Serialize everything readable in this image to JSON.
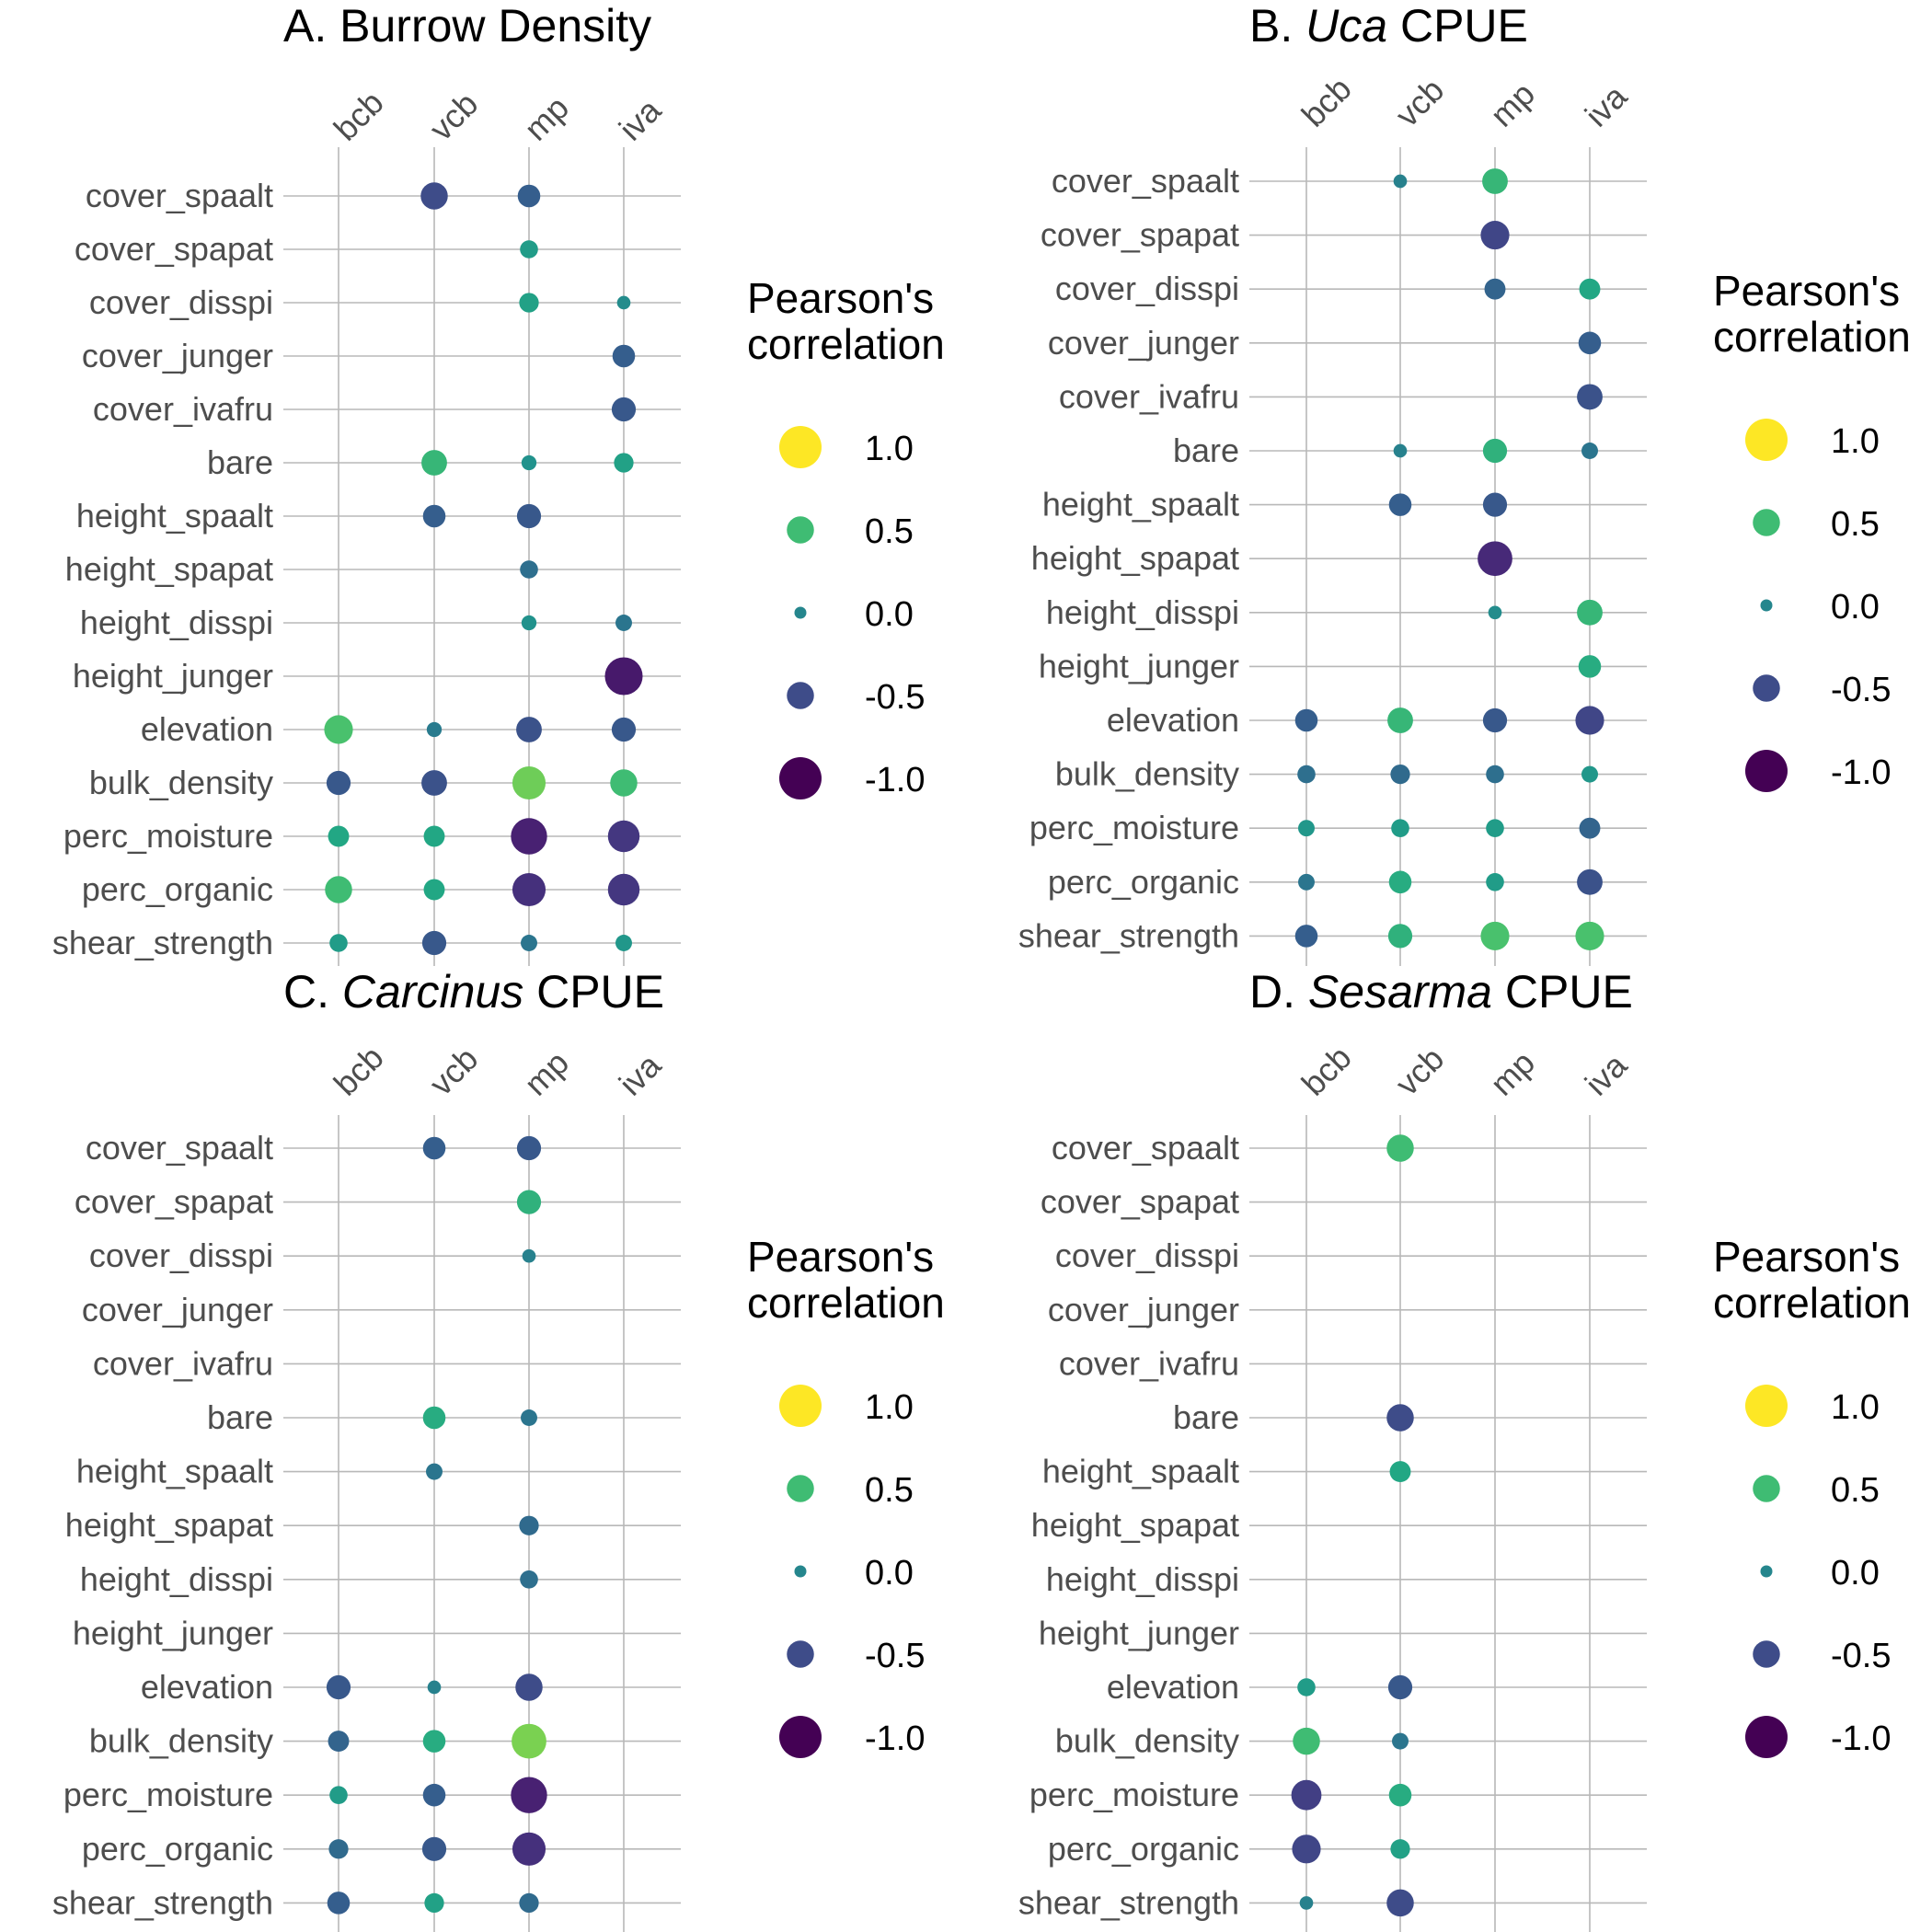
{
  "legend": {
    "title_line1": "Pearson's",
    "title_line2": "correlation",
    "levels": [
      {
        "value": 1.0,
        "label": "1.0"
      },
      {
        "value": 0.5,
        "label": "0.5"
      },
      {
        "value": 0.0,
        "label": "0.0"
      },
      {
        "value": -0.5,
        "label": "-0.5"
      },
      {
        "value": -1.0,
        "label": "-1.0"
      }
    ]
  },
  "chart_data": [
    {
      "type": "scatter",
      "title_prefix": "A. ",
      "title_italic": "",
      "title_suffix": "Burrow Density",
      "columns": [
        "bcb",
        "vcb",
        "mp",
        "iva"
      ],
      "rows": [
        "cover_spaalt",
        "cover_spapat",
        "cover_disspi",
        "cover_junger",
        "cover_ivafru",
        "bare",
        "height_spaalt",
        "height_spapat",
        "height_disspi",
        "height_junger",
        "elevation",
        "bulk_density",
        "perc_moisture",
        "perc_organic",
        "shear_strength"
      ],
      "points": [
        {
          "row": "cover_spaalt",
          "col": "vcb",
          "r": -0.5
        },
        {
          "row": "cover_spaalt",
          "col": "mp",
          "r": -0.35
        },
        {
          "row": "cover_spapat",
          "col": "mp",
          "r": 0.2
        },
        {
          "row": "cover_disspi",
          "col": "mp",
          "r": 0.25
        },
        {
          "row": "cover_disspi",
          "col": "iva",
          "r": 0.05
        },
        {
          "row": "cover_junger",
          "col": "iva",
          "r": -0.35
        },
        {
          "row": "cover_ivafru",
          "col": "iva",
          "r": -0.4
        },
        {
          "row": "bare",
          "col": "vcb",
          "r": 0.45
        },
        {
          "row": "bare",
          "col": "mp",
          "r": 0.1
        },
        {
          "row": "bare",
          "col": "iva",
          "r": 0.25
        },
        {
          "row": "height_spaalt",
          "col": "vcb",
          "r": -0.35
        },
        {
          "row": "height_spaalt",
          "col": "mp",
          "r": -0.4
        },
        {
          "row": "height_spapat",
          "col": "mp",
          "r": -0.2
        },
        {
          "row": "height_disspi",
          "col": "mp",
          "r": 0.1
        },
        {
          "row": "height_disspi",
          "col": "iva",
          "r": -0.15
        },
        {
          "row": "height_junger",
          "col": "iva",
          "r": -0.85
        },
        {
          "row": "elevation",
          "col": "bcb",
          "r": 0.55
        },
        {
          "row": "elevation",
          "col": "vcb",
          "r": -0.1
        },
        {
          "row": "elevation",
          "col": "mp",
          "r": -0.45
        },
        {
          "row": "elevation",
          "col": "iva",
          "r": -0.4
        },
        {
          "row": "bulk_density",
          "col": "bcb",
          "r": -0.4
        },
        {
          "row": "bulk_density",
          "col": "vcb",
          "r": -0.45
        },
        {
          "row": "bulk_density",
          "col": "mp",
          "r": 0.7
        },
        {
          "row": "bulk_density",
          "col": "iva",
          "r": 0.5
        },
        {
          "row": "perc_moisture",
          "col": "bcb",
          "r": 0.3
        },
        {
          "row": "perc_moisture",
          "col": "vcb",
          "r": 0.3
        },
        {
          "row": "perc_moisture",
          "col": "mp",
          "r": -0.8
        },
        {
          "row": "perc_moisture",
          "col": "iva",
          "r": -0.65
        },
        {
          "row": "perc_organic",
          "col": "bcb",
          "r": 0.5
        },
        {
          "row": "perc_organic",
          "col": "vcb",
          "r": 0.3
        },
        {
          "row": "perc_organic",
          "col": "mp",
          "r": -0.7
        },
        {
          "row": "perc_organic",
          "col": "iva",
          "r": -0.65
        },
        {
          "row": "shear_strength",
          "col": "bcb",
          "r": 0.2
        },
        {
          "row": "shear_strength",
          "col": "vcb",
          "r": -0.4
        },
        {
          "row": "shear_strength",
          "col": "mp",
          "r": -0.15
        },
        {
          "row": "shear_strength",
          "col": "iva",
          "r": 0.15
        }
      ]
    },
    {
      "type": "scatter",
      "title_prefix": "B. ",
      "title_italic": "Uca",
      "title_suffix": " CPUE",
      "columns": [
        "bcb",
        "vcb",
        "mp",
        "iva"
      ],
      "rows": [
        "cover_spaalt",
        "cover_spapat",
        "cover_disspi",
        "cover_junger",
        "cover_ivafru",
        "bare",
        "height_spaalt",
        "height_spapat",
        "height_disspi",
        "height_junger",
        "elevation",
        "bulk_density",
        "perc_moisture",
        "perc_organic",
        "shear_strength"
      ],
      "points": [
        {
          "row": "cover_spaalt",
          "col": "vcb",
          "r": -0.05
        },
        {
          "row": "cover_spaalt",
          "col": "mp",
          "r": 0.45
        },
        {
          "row": "cover_spapat",
          "col": "mp",
          "r": -0.55
        },
        {
          "row": "cover_disspi",
          "col": "mp",
          "r": -0.3
        },
        {
          "row": "cover_disspi",
          "col": "iva",
          "r": 0.3
        },
        {
          "row": "cover_junger",
          "col": "iva",
          "r": -0.35
        },
        {
          "row": "cover_ivafru",
          "col": "iva",
          "r": -0.45
        },
        {
          "row": "bare",
          "col": "vcb",
          "r": -0.05
        },
        {
          "row": "bare",
          "col": "mp",
          "r": 0.4
        },
        {
          "row": "bare",
          "col": "iva",
          "r": -0.15
        },
        {
          "row": "height_spaalt",
          "col": "vcb",
          "r": -0.35
        },
        {
          "row": "height_spaalt",
          "col": "mp",
          "r": -0.4
        },
        {
          "row": "height_spapat",
          "col": "mp",
          "r": -0.75
        },
        {
          "row": "height_disspi",
          "col": "mp",
          "r": 0.05
        },
        {
          "row": "height_disspi",
          "col": "iva",
          "r": 0.45
        },
        {
          "row": "height_junger",
          "col": "iva",
          "r": 0.35
        },
        {
          "row": "elevation",
          "col": "bcb",
          "r": -0.35
        },
        {
          "row": "elevation",
          "col": "vcb",
          "r": 0.45
        },
        {
          "row": "elevation",
          "col": "mp",
          "r": -0.4
        },
        {
          "row": "elevation",
          "col": "iva",
          "r": -0.55
        },
        {
          "row": "bulk_density",
          "col": "bcb",
          "r": -0.2
        },
        {
          "row": "bulk_density",
          "col": "vcb",
          "r": -0.25
        },
        {
          "row": "bulk_density",
          "col": "mp",
          "r": -0.2
        },
        {
          "row": "bulk_density",
          "col": "iva",
          "r": 0.15
        },
        {
          "row": "perc_moisture",
          "col": "bcb",
          "r": 0.15
        },
        {
          "row": "perc_moisture",
          "col": "vcb",
          "r": 0.2
        },
        {
          "row": "perc_moisture",
          "col": "mp",
          "r": 0.2
        },
        {
          "row": "perc_moisture",
          "col": "iva",
          "r": -0.3
        },
        {
          "row": "perc_organic",
          "col": "bcb",
          "r": -0.15
        },
        {
          "row": "perc_organic",
          "col": "vcb",
          "r": 0.35
        },
        {
          "row": "perc_organic",
          "col": "mp",
          "r": 0.2
        },
        {
          "row": "perc_organic",
          "col": "iva",
          "r": -0.45
        },
        {
          "row": "shear_strength",
          "col": "bcb",
          "r": -0.35
        },
        {
          "row": "shear_strength",
          "col": "vcb",
          "r": 0.4
        },
        {
          "row": "shear_strength",
          "col": "mp",
          "r": 0.55
        },
        {
          "row": "shear_strength",
          "col": "iva",
          "r": 0.55
        }
      ]
    },
    {
      "type": "scatter",
      "title_prefix": "C. ",
      "title_italic": "Carcinus",
      "title_suffix": " CPUE",
      "columns": [
        "bcb",
        "vcb",
        "mp",
        "iva"
      ],
      "rows": [
        "cover_spaalt",
        "cover_spapat",
        "cover_disspi",
        "cover_junger",
        "cover_ivafru",
        "bare",
        "height_spaalt",
        "height_spapat",
        "height_disspi",
        "height_junger",
        "elevation",
        "bulk_density",
        "perc_moisture",
        "perc_organic",
        "shear_strength"
      ],
      "points": [
        {
          "row": "cover_spaalt",
          "col": "vcb",
          "r": -0.35
        },
        {
          "row": "cover_spaalt",
          "col": "mp",
          "r": -0.4
        },
        {
          "row": "cover_spapat",
          "col": "mp",
          "r": 0.4
        },
        {
          "row": "cover_disspi",
          "col": "mp",
          "r": -0.05
        },
        {
          "row": "bare",
          "col": "vcb",
          "r": 0.35
        },
        {
          "row": "bare",
          "col": "mp",
          "r": -0.15
        },
        {
          "row": "height_spaalt",
          "col": "vcb",
          "r": -0.15
        },
        {
          "row": "height_spapat",
          "col": "mp",
          "r": -0.25
        },
        {
          "row": "height_disspi",
          "col": "mp",
          "r": -0.2
        },
        {
          "row": "elevation",
          "col": "bcb",
          "r": -0.4
        },
        {
          "row": "elevation",
          "col": "vcb",
          "r": -0.05
        },
        {
          "row": "elevation",
          "col": "mp",
          "r": -0.5
        },
        {
          "row": "bulk_density",
          "col": "bcb",
          "r": -0.3
        },
        {
          "row": "bulk_density",
          "col": "vcb",
          "r": 0.35
        },
        {
          "row": "bulk_density",
          "col": "mp",
          "r": 0.75
        },
        {
          "row": "perc_moisture",
          "col": "bcb",
          "r": 0.2
        },
        {
          "row": "perc_moisture",
          "col": "vcb",
          "r": -0.35
        },
        {
          "row": "perc_moisture",
          "col": "mp",
          "r": -0.8
        },
        {
          "row": "perc_organic",
          "col": "bcb",
          "r": -0.25
        },
        {
          "row": "perc_organic",
          "col": "vcb",
          "r": -0.4
        },
        {
          "row": "perc_organic",
          "col": "mp",
          "r": -0.7
        },
        {
          "row": "shear_strength",
          "col": "bcb",
          "r": -0.35
        },
        {
          "row": "shear_strength",
          "col": "vcb",
          "r": 0.25
        },
        {
          "row": "shear_strength",
          "col": "mp",
          "r": -0.25
        }
      ]
    },
    {
      "type": "scatter",
      "title_prefix": "D. ",
      "title_italic": "Sesarma",
      "title_suffix": " CPUE",
      "columns": [
        "bcb",
        "vcb",
        "mp",
        "iva"
      ],
      "rows": [
        "cover_spaalt",
        "cover_spapat",
        "cover_disspi",
        "cover_junger",
        "cover_ivafru",
        "bare",
        "height_spaalt",
        "height_spapat",
        "height_disspi",
        "height_junger",
        "elevation",
        "bulk_density",
        "perc_moisture",
        "perc_organic",
        "shear_strength"
      ],
      "points": [
        {
          "row": "cover_spaalt",
          "col": "vcb",
          "r": 0.5
        },
        {
          "row": "bare",
          "col": "vcb",
          "r": -0.5
        },
        {
          "row": "height_spaalt",
          "col": "vcb",
          "r": 0.3
        },
        {
          "row": "elevation",
          "col": "bcb",
          "r": 0.2
        },
        {
          "row": "elevation",
          "col": "vcb",
          "r": -0.4
        },
        {
          "row": "bulk_density",
          "col": "bcb",
          "r": 0.5
        },
        {
          "row": "bulk_density",
          "col": "vcb",
          "r": -0.15
        },
        {
          "row": "perc_moisture",
          "col": "bcb",
          "r": -0.6
        },
        {
          "row": "perc_moisture",
          "col": "vcb",
          "r": 0.35
        },
        {
          "row": "perc_organic",
          "col": "bcb",
          "r": -0.55
        },
        {
          "row": "perc_organic",
          "col": "vcb",
          "r": 0.25
        },
        {
          "row": "shear_strength",
          "col": "bcb",
          "r": -0.05
        },
        {
          "row": "shear_strength",
          "col": "vcb",
          "r": -0.5
        }
      ]
    }
  ]
}
